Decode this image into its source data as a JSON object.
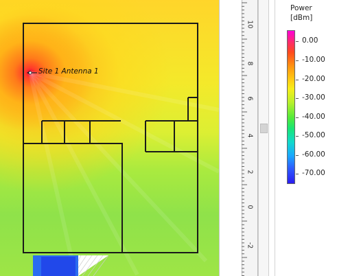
{
  "plot": {
    "antenna_label": "Site  1 Antenna 1"
  },
  "ruler": {
    "labels": [
      "10",
      "8",
      "6",
      "4",
      "2",
      "0",
      "-2"
    ]
  },
  "legend": {
    "title_line1": "Power",
    "title_line2": "[dBm]",
    "labels": [
      "0.00",
      "-10.00",
      "-20.00",
      "-30.00",
      "-40.00",
      "-50.00",
      "-60.00",
      "-70.00"
    ],
    "colors": [
      "#ff00d9",
      "#ff4a1e",
      "#ffd114",
      "#b8f02c",
      "#19e574",
      "#12d9cc",
      "#2e5dff",
      "#2a1cf0"
    ]
  }
}
